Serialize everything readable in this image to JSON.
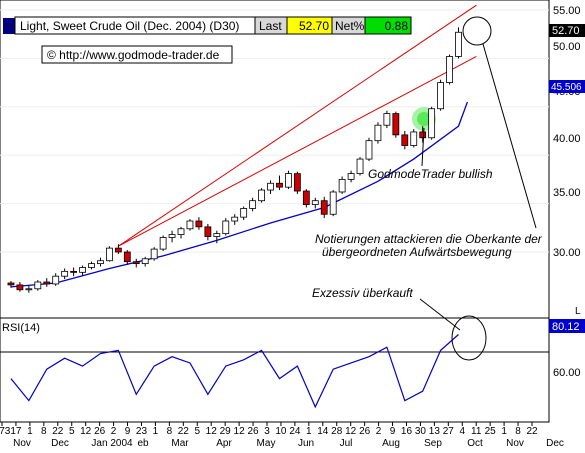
{
  "header": {
    "symbol_label": "Light, Sweet Crude Oil (Dec. 2004) (D30)",
    "last_label": "Last",
    "last_value": "52.70",
    "net_label": "Net%",
    "net_value": "0.88",
    "copyright": "© http://www.godmode-trader.de"
  },
  "colors": {
    "candle_up": "#ffffff",
    "candle_down": "#cc0000",
    "candle_outline": "#000000",
    "moving_average": "#0000cc",
    "trendline": "#dd0000",
    "rsi_line": "#0000cc",
    "signal_glow": "#00dd00",
    "last_box": "#ffff00",
    "net_box": "#00cc00",
    "header_bar": "#000080"
  },
  "annotations": {
    "bullish": "GodmodeTrader bullish",
    "resistance_line1": "Notierungen attackieren die Oberkante der",
    "resistance_line2": "übergeordneten Aufwärtsbewegung",
    "overbought": "Exzessiv überkauft"
  },
  "price_axis": {
    "ticks": [
      "55.00",
      "50.00",
      "45.00",
      "40.00",
      "35.00",
      "30.00"
    ],
    "last_price_tag": "52.70",
    "ma_tag": "45.506",
    "scale_marker": "L"
  },
  "rsi": {
    "label": "RSI(14)",
    "value_tag": "80.12",
    "tick_60": "60.00"
  },
  "x_axis": {
    "day_labels": [
      "273",
      "17",
      "1",
      "8",
      "22",
      "5",
      "12",
      "26",
      "2",
      "9",
      "23",
      "1",
      "8",
      "22",
      "5",
      "12",
      "29",
      "12",
      "26",
      "3",
      "10",
      "24",
      "1",
      "14",
      "28",
      "12",
      "26",
      "2",
      "9",
      "16",
      "30",
      "13",
      "27",
      "4",
      "11",
      "25",
      "1",
      "8",
      "22"
    ],
    "month_labels": [
      "Nov",
      "Dec",
      "Jan 2004",
      "eb",
      "Mar",
      "Apr",
      "May",
      "Jun",
      "Jul",
      "Aug",
      "Sep",
      "Oct",
      "Nov",
      "Dec"
    ]
  },
  "chart_data": {
    "type": "candlestick",
    "title": "Light, Sweet Crude Oil (Dec. 2004) (D30)",
    "period": "Oct 2003 – Oct 2004",
    "ylim": [
      25.5,
      55.5
    ],
    "price_series_weekly_close": [
      {
        "x": "2003-10-27",
        "open": 26.8,
        "high": 27.0,
        "low": 26.3,
        "close": 26.6
      },
      {
        "x": "2003-11-03",
        "open": 26.6,
        "high": 26.9,
        "low": 25.9,
        "close": 26.1
      },
      {
        "x": "2003-11-10",
        "open": 26.1,
        "high": 26.6,
        "low": 25.8,
        "close": 26.2
      },
      {
        "x": "2003-11-17",
        "open": 26.2,
        "high": 27.1,
        "low": 26.0,
        "close": 26.9
      },
      {
        "x": "2003-11-24",
        "open": 26.9,
        "high": 27.3,
        "low": 26.4,
        "close": 26.7
      },
      {
        "x": "2003-12-01",
        "open": 26.7,
        "high": 27.8,
        "low": 26.5,
        "close": 27.5
      },
      {
        "x": "2003-12-08",
        "open": 27.5,
        "high": 28.3,
        "low": 27.2,
        "close": 28.0
      },
      {
        "x": "2003-12-15",
        "open": 28.0,
        "high": 28.4,
        "low": 27.5,
        "close": 27.9
      },
      {
        "x": "2003-12-22",
        "open": 27.9,
        "high": 28.6,
        "low": 27.6,
        "close": 28.4
      },
      {
        "x": "2003-12-29",
        "open": 28.4,
        "high": 29.0,
        "low": 28.2,
        "close": 28.8
      },
      {
        "x": "2004-01-05",
        "open": 28.8,
        "high": 29.4,
        "low": 28.5,
        "close": 29.1
      },
      {
        "x": "2004-01-12",
        "open": 29.1,
        "high": 30.6,
        "low": 29.0,
        "close": 30.4
      },
      {
        "x": "2004-01-19",
        "open": 30.4,
        "high": 30.8,
        "low": 29.8,
        "close": 30.0
      },
      {
        "x": "2004-01-26",
        "open": 30.0,
        "high": 30.2,
        "low": 28.7,
        "close": 29.0
      },
      {
        "x": "2004-02-02",
        "open": 29.0,
        "high": 29.3,
        "low": 28.4,
        "close": 28.8
      },
      {
        "x": "2004-02-09",
        "open": 28.8,
        "high": 29.5,
        "low": 28.5,
        "close": 29.3
      },
      {
        "x": "2004-02-16",
        "open": 29.3,
        "high": 30.5,
        "low": 29.1,
        "close": 30.3
      },
      {
        "x": "2004-02-23",
        "open": 30.3,
        "high": 31.7,
        "low": 30.1,
        "close": 31.5
      },
      {
        "x": "2004-03-01",
        "open": 31.5,
        "high": 32.2,
        "low": 31.0,
        "close": 31.8
      },
      {
        "x": "2004-03-08",
        "open": 31.8,
        "high": 32.6,
        "low": 31.4,
        "close": 32.4
      },
      {
        "x": "2004-03-15",
        "open": 32.4,
        "high": 33.4,
        "low": 32.2,
        "close": 33.2
      },
      {
        "x": "2004-03-22",
        "open": 33.2,
        "high": 33.6,
        "low": 32.3,
        "close": 32.6
      },
      {
        "x": "2004-03-29",
        "open": 32.6,
        "high": 32.9,
        "low": 31.2,
        "close": 31.6
      },
      {
        "x": "2004-04-05",
        "open": 31.6,
        "high": 32.2,
        "low": 30.9,
        "close": 31.9
      },
      {
        "x": "2004-04-12",
        "open": 31.9,
        "high": 33.5,
        "low": 31.7,
        "close": 33.2
      },
      {
        "x": "2004-04-19",
        "open": 33.2,
        "high": 33.9,
        "low": 32.8,
        "close": 33.6
      },
      {
        "x": "2004-04-26",
        "open": 33.6,
        "high": 34.7,
        "low": 33.3,
        "close": 34.5
      },
      {
        "x": "2004-05-03",
        "open": 34.5,
        "high": 35.6,
        "low": 34.2,
        "close": 35.3
      },
      {
        "x": "2004-05-10",
        "open": 35.3,
        "high": 36.6,
        "low": 35.1,
        "close": 36.4
      },
      {
        "x": "2004-05-17",
        "open": 36.4,
        "high": 37.4,
        "low": 36.0,
        "close": 37.1
      },
      {
        "x": "2004-05-24",
        "open": 37.1,
        "high": 37.9,
        "low": 36.4,
        "close": 36.7
      },
      {
        "x": "2004-05-31",
        "open": 36.7,
        "high": 38.4,
        "low": 36.5,
        "close": 38.1
      },
      {
        "x": "2004-06-07",
        "open": 38.1,
        "high": 38.3,
        "low": 36.0,
        "close": 36.3
      },
      {
        "x": "2004-06-14",
        "open": 36.3,
        "high": 36.5,
        "low": 34.6,
        "close": 34.9
      },
      {
        "x": "2004-06-21",
        "open": 34.9,
        "high": 35.6,
        "low": 34.5,
        "close": 35.3
      },
      {
        "x": "2004-06-28",
        "open": 35.3,
        "high": 35.7,
        "low": 33.5,
        "close": 33.9
      },
      {
        "x": "2004-07-05",
        "open": 33.9,
        "high": 36.4,
        "low": 33.7,
        "close": 36.2
      },
      {
        "x": "2004-07-12",
        "open": 36.2,
        "high": 37.8,
        "low": 36.0,
        "close": 37.5
      },
      {
        "x": "2004-07-19",
        "open": 37.5,
        "high": 38.4,
        "low": 37.2,
        "close": 38.1
      },
      {
        "x": "2004-07-26",
        "open": 38.1,
        "high": 39.8,
        "low": 37.9,
        "close": 39.6
      },
      {
        "x": "2004-08-02",
        "open": 39.6,
        "high": 41.8,
        "low": 39.4,
        "close": 41.5
      },
      {
        "x": "2004-08-09",
        "open": 41.5,
        "high": 43.4,
        "low": 41.2,
        "close": 43.1
      },
      {
        "x": "2004-08-16",
        "open": 43.1,
        "high": 44.6,
        "low": 42.8,
        "close": 44.3
      },
      {
        "x": "2004-08-23",
        "open": 44.3,
        "high": 44.5,
        "low": 41.8,
        "close": 42.1
      },
      {
        "x": "2004-08-30",
        "open": 42.1,
        "high": 42.5,
        "low": 40.6,
        "close": 41.0
      },
      {
        "x": "2004-09-06",
        "open": 41.0,
        "high": 42.7,
        "low": 40.8,
        "close": 42.4
      },
      {
        "x": "2004-09-13",
        "open": 42.4,
        "high": 43.0,
        "low": 41.3,
        "close": 41.8
      },
      {
        "x": "2004-09-20",
        "open": 41.8,
        "high": 45.0,
        "low": 41.6,
        "close": 44.8
      },
      {
        "x": "2004-09-27",
        "open": 44.8,
        "high": 47.8,
        "low": 44.6,
        "close": 47.5
      },
      {
        "x": "2004-10-04",
        "open": 47.5,
        "high": 50.4,
        "low": 47.3,
        "close": 50.2
      },
      {
        "x": "2004-10-11",
        "open": 50.2,
        "high": 53.2,
        "low": 50.0,
        "close": 52.7
      }
    ],
    "moving_average": [
      {
        "x": "2003-10-27",
        "y": 26.4
      },
      {
        "x": "2003-12-01",
        "y": 26.8
      },
      {
        "x": "2004-01-12",
        "y": 28.3
      },
      {
        "x": "2004-02-23",
        "y": 29.6
      },
      {
        "x": "2004-04-05",
        "y": 31.2
      },
      {
        "x": "2004-05-17",
        "y": 33.0
      },
      {
        "x": "2004-06-28",
        "y": 34.6
      },
      {
        "x": "2004-08-09",
        "y": 37.3
      },
      {
        "x": "2004-09-06",
        "y": 39.6
      },
      {
        "x": "2004-10-11",
        "y": 43.0
      },
      {
        "x": "2004-10-18",
        "y": 45.5
      }
    ],
    "trendlines": [
      {
        "from": {
          "x": "2004-01-19",
          "y": 30.6
        },
        "to": {
          "x": "2004-10-25",
          "y": 55.5
        }
      },
      {
        "from": {
          "x": "2004-01-19",
          "y": 30.6
        },
        "to": {
          "x": "2004-10-25",
          "y": 50.2
        }
      }
    ],
    "rsi_series": [
      {
        "x": "2003-10-27",
        "y": 52
      },
      {
        "x": "2003-11-10",
        "y": 38
      },
      {
        "x": "2003-11-24",
        "y": 58
      },
      {
        "x": "2003-12-08",
        "y": 65
      },
      {
        "x": "2003-12-22",
        "y": 60
      },
      {
        "x": "2004-01-05",
        "y": 68
      },
      {
        "x": "2004-01-19",
        "y": 70
      },
      {
        "x": "2004-02-02",
        "y": 42
      },
      {
        "x": "2004-02-16",
        "y": 60
      },
      {
        "x": "2004-03-01",
        "y": 66
      },
      {
        "x": "2004-03-15",
        "y": 62
      },
      {
        "x": "2004-03-29",
        "y": 42
      },
      {
        "x": "2004-04-12",
        "y": 60
      },
      {
        "x": "2004-04-26",
        "y": 64
      },
      {
        "x": "2004-05-10",
        "y": 70
      },
      {
        "x": "2004-05-24",
        "y": 52
      },
      {
        "x": "2004-06-07",
        "y": 60
      },
      {
        "x": "2004-06-21",
        "y": 34
      },
      {
        "x": "2004-07-05",
        "y": 58
      },
      {
        "x": "2004-07-19",
        "y": 62
      },
      {
        "x": "2004-08-02",
        "y": 66
      },
      {
        "x": "2004-08-16",
        "y": 72
      },
      {
        "x": "2004-08-30",
        "y": 38
      },
      {
        "x": "2004-09-13",
        "y": 44
      },
      {
        "x": "2004-09-27",
        "y": 70
      },
      {
        "x": "2004-10-11",
        "y": 80.12
      }
    ],
    "rsi_ylim": [
      25,
      90
    ]
  }
}
